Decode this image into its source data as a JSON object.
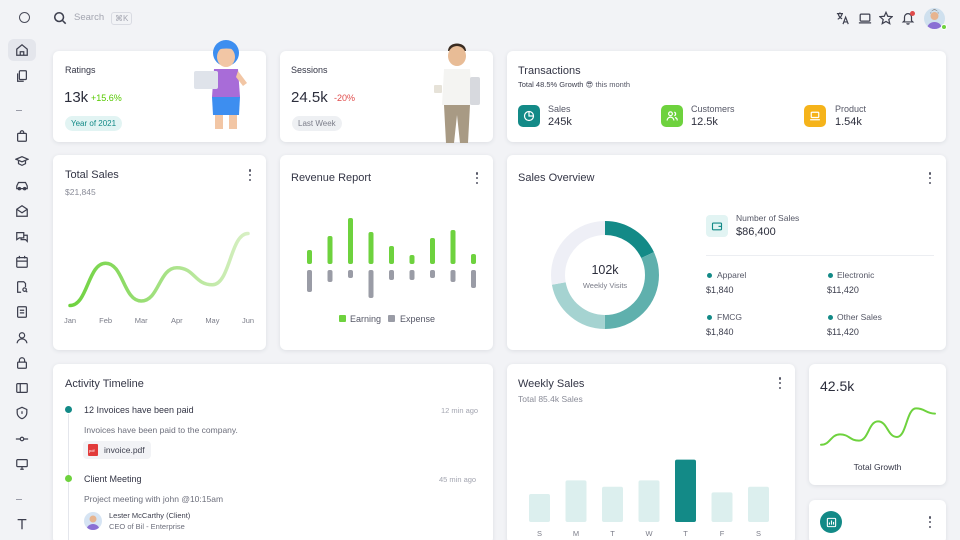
{
  "topbar": {
    "search_placeholder": "Search",
    "search_shortcut": "⌘K"
  },
  "icons": {
    "top_left": "circle-icon",
    "search": "search-icon",
    "translate": "translate-icon",
    "theme": "laptop-icon",
    "shortcuts": "star-icon",
    "notifications": "bell-icon"
  },
  "colors": {
    "accent": "#138a87",
    "green": "#6ed23e",
    "orange": "#f5b31a",
    "gray": "#9a9ca6",
    "red": "#e04b4b"
  },
  "ratings": {
    "title": "Ratings",
    "value": "13k",
    "change": "+15.6%",
    "badge": "Year of 2021"
  },
  "sessions": {
    "title": "Sessions",
    "value": "24.5k",
    "change": "-20%",
    "badge": "Last Week"
  },
  "transactions": {
    "title": "Transactions",
    "subtitle_bold": "Total 48.5% Growth",
    "subtitle_emoji": "😎",
    "subtitle_rest": "this month",
    "stats": [
      {
        "label": "Sales",
        "value": "245k",
        "icon": "pie-chart-icon",
        "color": "#138a87"
      },
      {
        "label": "Customers",
        "value": "12.5k",
        "icon": "users-icon",
        "color": "#6ed23e"
      },
      {
        "label": "Product",
        "value": "1.54k",
        "icon": "laptop-icon",
        "color": "#f5b31a"
      }
    ]
  },
  "total_sales": {
    "title": "Total Sales",
    "amount": "$21,845"
  },
  "revenue_report": {
    "title": "Revenue Report",
    "legend_earning": "Earning",
    "legend_expense": "Expense"
  },
  "sales_overview": {
    "title": "Sales Overview",
    "donut_value": "102k",
    "donut_label": "Weekly Visits",
    "number_label": "Number of Sales",
    "number_value": "$86,400",
    "items": [
      {
        "label": "Apparel",
        "value": "$1,840"
      },
      {
        "label": "Electronic",
        "value": "$11,420"
      },
      {
        "label": "FMCG",
        "value": "$1,840"
      },
      {
        "label": "Other Sales",
        "value": "$11,420"
      }
    ]
  },
  "activity": {
    "title": "Activity Timeline",
    "items": [
      {
        "title": "12 Invoices have been paid",
        "time": "12 min ago",
        "desc": "Invoices have been paid to the company.",
        "file": "invoice.pdf",
        "color": "#138a87"
      },
      {
        "title": "Client Meeting",
        "time": "45 min ago",
        "desc": "Project meeting with john @10:15am",
        "person": "Lester McCarthy (Client)",
        "role": "CEO of Bil - Enterprise",
        "color": "#6ed23e"
      }
    ]
  },
  "weekly_sales": {
    "title": "Weekly Sales",
    "subtitle": "Total 85.4k Sales"
  },
  "total_growth": {
    "value": "42.5k",
    "label": "Total Growth"
  },
  "chart_data": [
    {
      "type": "line",
      "title": "Total Sales",
      "categories": [
        "Jan",
        "Feb",
        "Mar",
        "Apr",
        "May",
        "Jun"
      ],
      "values": [
        5,
        52,
        10,
        47,
        28,
        85
      ],
      "ylim": [
        0,
        100
      ]
    },
    {
      "type": "bar",
      "title": "Revenue Report",
      "categories": [
        "1",
        "2",
        "3",
        "4",
        "5",
        "6",
        "7",
        "8",
        "9"
      ],
      "series": [
        {
          "name": "Earning",
          "values": [
            14,
            28,
            46,
            32,
            18,
            9,
            26,
            34,
            10
          ],
          "color": "#6ed23e"
        },
        {
          "name": "Expense",
          "values": [
            22,
            12,
            8,
            28,
            10,
            10,
            8,
            12,
            18
          ],
          "color": "#9a9ca6"
        }
      ]
    },
    {
      "type": "pie",
      "title": "Sales Overview",
      "values": [
        18,
        32,
        22,
        28
      ],
      "colors": [
        "#138a87",
        "#5fb0ad",
        "#a5d3d1",
        "#eeeff6"
      ]
    },
    {
      "type": "bar",
      "title": "Weekly Sales",
      "categories": [
        "S",
        "M",
        "T",
        "W",
        "T",
        "F",
        "S"
      ],
      "values": [
        35,
        52,
        44,
        52,
        78,
        37,
        44
      ],
      "highlight_index": 4,
      "colors": [
        "#dcefee",
        "#138a87"
      ]
    },
    {
      "type": "line",
      "title": "Total Growth",
      "values": [
        10,
        30,
        18,
        55,
        25,
        80,
        70
      ],
      "ylim": [
        0,
        100
      ]
    }
  ]
}
